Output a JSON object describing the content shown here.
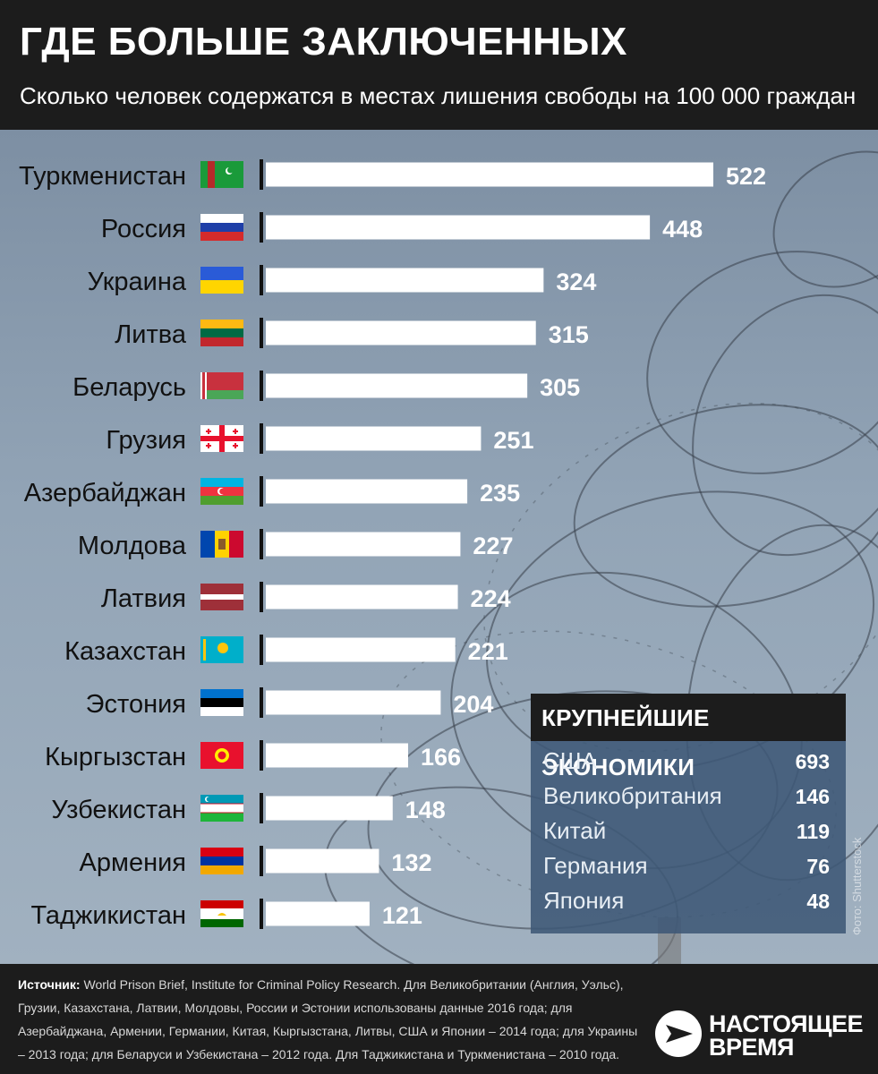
{
  "title": "ГДЕ БОЛЬШЕ ЗАКЛЮЧЕННЫХ",
  "subtitle": "Сколько человек содержатся в местах лишения свободы на 100 000 граждан",
  "chart_data": {
    "type": "bar",
    "orientation": "horizontal",
    "categories": [
      "Туркменистан",
      "Россия",
      "Украина",
      "Литва",
      "Беларусь",
      "Грузия",
      "Азербайджан",
      "Молдова",
      "Латвия",
      "Казахстан",
      "Эстония",
      "Кыргызстан",
      "Узбекистан",
      "Армения",
      "Таджикистан"
    ],
    "values": [
      522,
      448,
      324,
      315,
      305,
      251,
      235,
      227,
      224,
      221,
      204,
      166,
      148,
      132,
      121
    ],
    "flags": [
      "turkmenistan-flag",
      "russia-flag",
      "ukraine-flag",
      "lithuania-flag",
      "belarus-flag",
      "georgia-flag",
      "azerbaijan-flag",
      "moldova-flag",
      "latvia-flag",
      "kazakhstan-flag",
      "estonia-flag",
      "kyrgyzstan-flag",
      "uzbekistan-flag",
      "armenia-flag",
      "tajikistan-flag"
    ],
    "bar_color": "#ffffff",
    "xlim": [
      0,
      522
    ]
  },
  "economies": {
    "heading": "КРУПНЕЙШИЕ ЭКОНОМИКИ",
    "rows": [
      {
        "name": "США",
        "value": "693"
      },
      {
        "name": "Великобритания",
        "value": "146"
      },
      {
        "name": "Китай",
        "value": "119"
      },
      {
        "name": "Германия",
        "value": "76"
      },
      {
        "name": "Япония",
        "value": "48"
      }
    ]
  },
  "photo_credit": "Фото: Shutterstock",
  "footer": {
    "source_label": "Источник:",
    "source_text": "World Prison Brief, Institute for Criminal Policy Research. Для Великобритании (Англия, Уэльс), Грузии, Казахстана, Латвии, Молдовы, России и Эстонии использованы данные 2016 года; для Азербайджана, Армении, Германии, Китая, Кыргызстана, Литвы, США и Японии – 2014 года; для Украины – 2013 года; для Беларуси и Узбекистана – 2012 года. Для Таджикистана и Туркменистана – 2010 года.",
    "logo_line1": "НАСТОЯЩЕЕ",
    "logo_line2": "ВРЕМЯ"
  }
}
